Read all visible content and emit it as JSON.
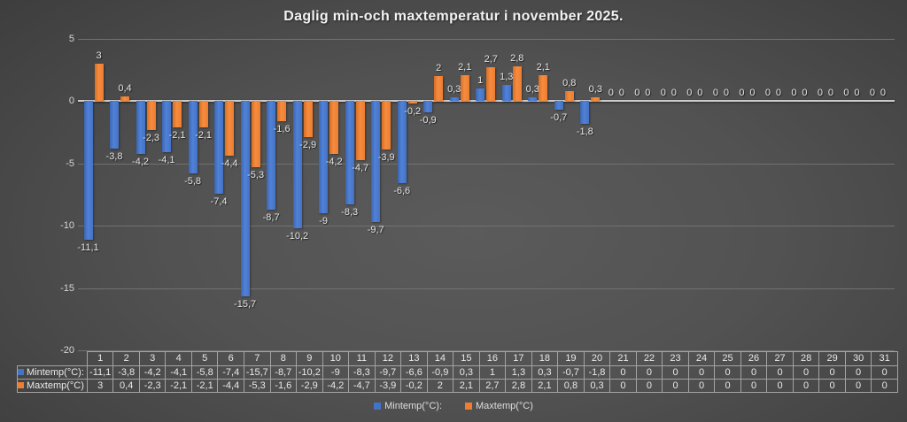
{
  "title": "Daglig min-och maxtemperatur i november 2025.",
  "colors": {
    "min_series": "#4472C4",
    "max_series": "#ED7D31",
    "background_center": "#5b5b5b",
    "background_edge": "#272727",
    "gridline": "#717171",
    "axis_line": "#cbcbcb",
    "text": "#e9e9e9"
  },
  "chart_data": {
    "type": "bar",
    "title": "Daglig min-och maxtemperatur i november 2025.",
    "xlabel": "",
    "ylabel": "",
    "ylim": [
      -20,
      5
    ],
    "grid": true,
    "legend_position": "bottom",
    "categories": [
      "1",
      "2",
      "3",
      "4",
      "5",
      "6",
      "7",
      "8",
      "9",
      "10",
      "11",
      "12",
      "13",
      "14",
      "15",
      "16",
      "17",
      "18",
      "19",
      "20",
      "21",
      "22",
      "23",
      "24",
      "25",
      "26",
      "27",
      "28",
      "29",
      "30",
      "31"
    ],
    "y_axis": {
      "ticks": [
        5,
        0,
        -5,
        -10,
        -15,
        -20
      ],
      "tick_labels": [
        "5",
        "0",
        "-5",
        "-10",
        "-15",
        "-20"
      ]
    },
    "series": [
      {
        "name": "Mintemp(°C):",
        "color": "#4472C4",
        "values": [
          -11.1,
          -3.8,
          -4.2,
          -4.1,
          -5.8,
          -7.4,
          -15.7,
          -8.7,
          -10.2,
          -9,
          -8.3,
          -9.7,
          -6.6,
          -0.9,
          0.3,
          1,
          1.3,
          0.3,
          -0.7,
          -1.8,
          0,
          0,
          0,
          0,
          0,
          0,
          0,
          0,
          0,
          0,
          0
        ],
        "labels": [
          "-11,1",
          "-3,8",
          "-4,2",
          "-4,1",
          "-5,8",
          "-7,4",
          "-15,7",
          "-8,7",
          "-10,2",
          "-9",
          "-8,3",
          "-9,7",
          "-6,6",
          "-0,9",
          "0,3",
          "1",
          "1,3",
          "0,3",
          "-0,7",
          "-1,8",
          "0",
          "0",
          "0",
          "0",
          "0",
          "0",
          "0",
          "0",
          "0",
          "0",
          "0"
        ]
      },
      {
        "name": "Maxtemp(°C)",
        "color": "#ED7D31",
        "values": [
          3,
          0.4,
          -2.3,
          -2.1,
          -2.1,
          -4.4,
          -5.3,
          -1.6,
          -2.9,
          -4.2,
          -4.7,
          -3.9,
          -0.2,
          2,
          2.1,
          2.7,
          2.8,
          2.1,
          0.8,
          0.3,
          0,
          0,
          0,
          0,
          0,
          0,
          0,
          0,
          0,
          0,
          0
        ],
        "labels": [
          "3",
          "0,4",
          "-2,3",
          "-2,1",
          "-2,1",
          "-4,4",
          "-5,3",
          "-1,6",
          "-2,9",
          "-4,2",
          "-4,7",
          "-3,9",
          "-0,2",
          "2",
          "2,1",
          "2,7",
          "2,8",
          "2,1",
          "0,8",
          "0,3",
          "0",
          "0",
          "0",
          "0",
          "0",
          "0",
          "0",
          "0",
          "0",
          "0",
          "0"
        ]
      }
    ]
  },
  "table": {
    "row_headers": [
      "Mintemp(°C):",
      "Maxtemp(°C)"
    ]
  },
  "legend": {
    "items": [
      {
        "label": "Mintemp(°C):",
        "color": "#4472C4",
        "kind": "min"
      },
      {
        "label": "Maxtemp(°C)",
        "color": "#ED7D31",
        "kind": "max"
      }
    ]
  }
}
